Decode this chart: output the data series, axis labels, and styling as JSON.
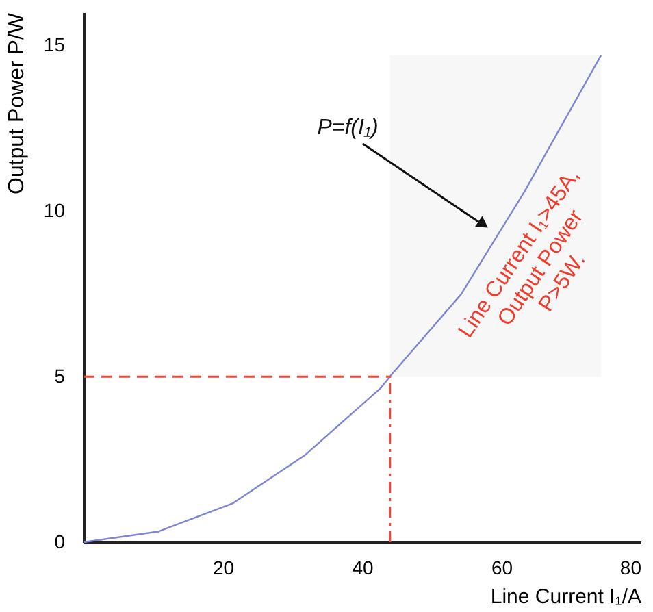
{
  "chart_data": {
    "type": "line",
    "xlabel": "Line Current I₁/A",
    "ylabel": "Output Power P/W",
    "x": [
      0,
      10.7,
      21.4,
      31.8,
      42.7,
      44.1,
      54.2,
      63.3,
      74.3
    ],
    "series": [
      {
        "color": "#7f84d4",
        "values": [
          0,
          0.32,
          1.17,
          2.63,
          4.66,
          5.03,
          7.48,
          10.58,
          14.7
        ]
      }
    ],
    "xlim": [
      0,
      80
    ],
    "xticks": [
      20,
      40,
      60,
      80
    ],
    "ylim": [
      0,
      16
    ],
    "yticks": [
      0,
      5,
      10,
      15
    ],
    "grid": false,
    "marker": "none",
    "line_style": "solid",
    "ref_lines": [
      {
        "axis": "y",
        "value": 5,
        "color": "#f04a3c",
        "line_style": "dashed"
      },
      {
        "axis": "x",
        "value": 44,
        "color": "#f04a3c",
        "line_style": "dashdot"
      }
    ],
    "bands": [
      {
        "axis": "x",
        "from": 44,
        "to": 74.3,
        "color": "#c8c8c8"
      }
    ],
    "annotations": [
      "P=f(I₁)",
      "Line Current I₁>45A,\nOutput Power\nP>5W."
    ]
  }
}
